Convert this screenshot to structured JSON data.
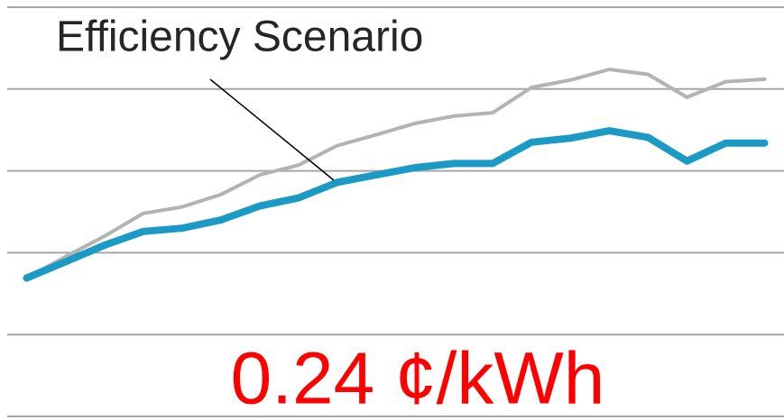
{
  "chart_data": {
    "type": "line",
    "annotations": [
      "Efficiency Scenario",
      "0.24 ¢/kWh"
    ],
    "categories": [
      null,
      null,
      null,
      null,
      null,
      null,
      null,
      null,
      null,
      null,
      null,
      null,
      null,
      null,
      null,
      null,
      null,
      null,
      null,
      null
    ],
    "series": [
      {
        "color": "#b3b3b3",
        "values": [
          1.69,
          1.95,
          2.2,
          2.48,
          2.56,
          2.71,
          2.95,
          3.07,
          3.31,
          3.44,
          3.58,
          3.67,
          3.71,
          4.02,
          4.11,
          4.24,
          4.18,
          3.9,
          4.09,
          4.12
        ]
      },
      {
        "color": "#1a9ac4",
        "values": [
          1.69,
          1.89,
          2.09,
          2.26,
          2.3,
          2.4,
          2.57,
          2.67,
          2.86,
          2.95,
          3.04,
          3.09,
          3.09,
          3.35,
          3.4,
          3.49,
          3.41,
          3.12,
          3.34,
          3.34
        ]
      }
    ],
    "ylim": [
      0,
      5
    ],
    "yticks": [
      0,
      1,
      2,
      3,
      4,
      5
    ],
    "grid": true
  }
}
